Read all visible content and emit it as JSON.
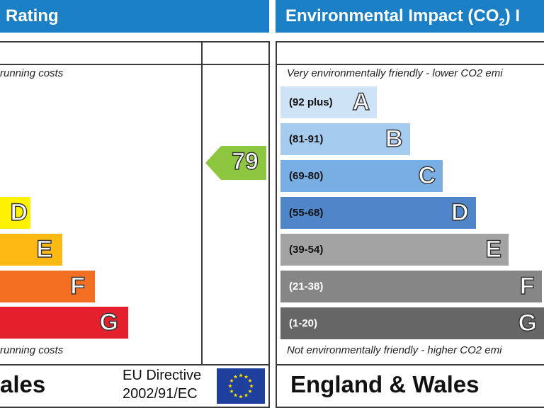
{
  "left_panel": {
    "header": "Rating",
    "top_note": "running costs",
    "bottom_note": "running costs",
    "bands": [
      {
        "letter": "D",
        "color": "#fff200"
      },
      {
        "letter": "E",
        "color": "#fcb913"
      },
      {
        "letter": "F",
        "color": "#f26f22"
      },
      {
        "letter": "G",
        "color": "#e3202c"
      }
    ],
    "current_rating": "79",
    "current_color": "#8dc63f",
    "footer_region": "ales",
    "footer_directive_line1": "EU Directive",
    "footer_directive_line2": "2002/91/EC"
  },
  "right_panel": {
    "header": "Environmental Impact (CO",
    "header_sub": "2",
    "header_end": ") I",
    "top_note": "Very environmentally friendly - lower CO2 emi",
    "bottom_note": "Not environmentally friendly - higher CO2 emi",
    "footer_region": "England & Wales"
  },
  "chart_data": {
    "type": "bar",
    "categories": [
      "A",
      "B",
      "C",
      "D",
      "E",
      "F",
      "G"
    ],
    "ranges": [
      "(92 plus)",
      "(81-91)",
      "(69-80)",
      "(55-68)",
      "(39-54)",
      "(21-38)",
      "(1-20)"
    ],
    "colors": [
      "#cfe3f6",
      "#a5cbef",
      "#78aee4",
      "#4f86c9",
      "#a3a3a3",
      "#868686",
      "#666666"
    ],
    "range_text_colors": [
      "#111111",
      "#111111",
      "#111111",
      "#111111",
      "#111111",
      "#ffffff",
      "#ffffff"
    ]
  }
}
